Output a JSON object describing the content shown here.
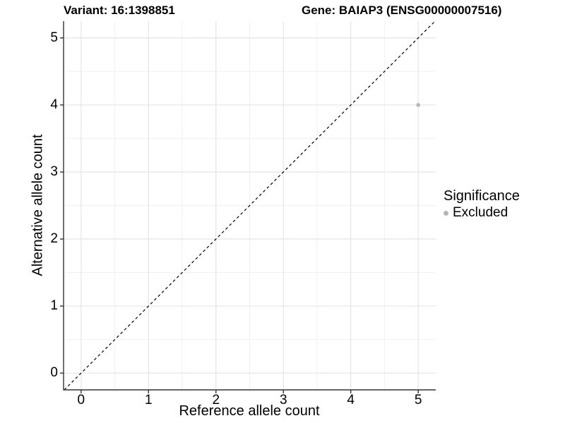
{
  "titles": {
    "variant": "Variant: 16:1398851",
    "gene": "Gene: BAIAP3 (ENSG00000007516)"
  },
  "legend": {
    "title": "Significance",
    "items": [
      {
        "label": "Excluded",
        "color": "#b5b5b5"
      }
    ]
  },
  "colors": {
    "background": "#ffffff",
    "grid_major": "#e2e2e2",
    "grid_minor": "#f0f0f0",
    "axis_line": "#333333",
    "tick_mark": "#333333",
    "reference_line": "#000000",
    "text": "#000000",
    "point": "#b5b5b5"
  },
  "chart_data": {
    "type": "scatter",
    "title_left": "Variant: 16:1398851",
    "title_right": "Gene: BAIAP3 (ENSG00000007516)",
    "xlabel": "Reference allele count",
    "ylabel": "Alternative allele count",
    "xlim": [
      -0.26,
      5.26
    ],
    "ylim": [
      -0.25,
      5.25
    ],
    "xticks": [
      0,
      1,
      2,
      3,
      4,
      5
    ],
    "yticks": [
      0,
      1,
      2,
      3,
      4,
      5
    ],
    "grid": true,
    "minor_gridlines": true,
    "legend_position": "right",
    "legend_title": "Significance",
    "series": [
      {
        "name": "Excluded",
        "color": "#b5b5b5",
        "points": [
          {
            "x": 5,
            "y": 4
          }
        ]
      }
    ],
    "reference_line": {
      "kind": "identity",
      "slope": 1,
      "intercept": 0,
      "style": "dashed",
      "color": "#000000"
    }
  }
}
